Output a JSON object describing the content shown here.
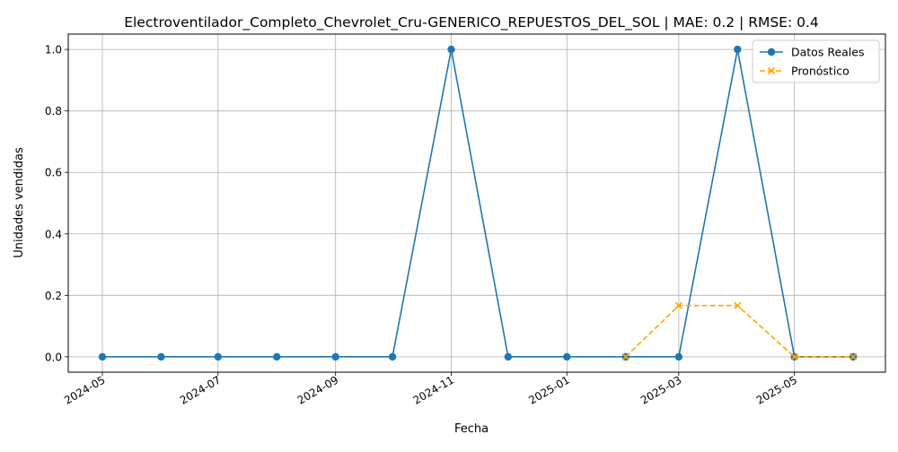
{
  "chart_data": {
    "type": "line",
    "title": "Electroventilador_Completo_Chevrolet_Cru-GENERICO_REPUESTOS_DEL_SOL | MAE: 0.2 | RMSE: 0.4",
    "xlabel": "Fecha",
    "ylabel": "Unidades vendidas",
    "xlim": [
      "2024-04-13",
      "2025-06-18"
    ],
    "ylim": [
      -0.05,
      1.05
    ],
    "x_ticks": [
      "2024-05",
      "2024-07",
      "2024-09",
      "2024-11",
      "2025-01",
      "2025-03",
      "2025-05"
    ],
    "y_ticks": [
      "0.0",
      "0.2",
      "0.4",
      "0.6",
      "0.8",
      "1.0"
    ],
    "grid": true,
    "legend_position": "top-right",
    "series": [
      {
        "name": "Datos Reales",
        "color": "#1f77b4",
        "style": "solid",
        "marker": "circle",
        "x": [
          "2024-05-01",
          "2024-06-01",
          "2024-07-01",
          "2024-08-01",
          "2024-09-01",
          "2024-10-01",
          "2024-11-01",
          "2024-12-01",
          "2025-01-01",
          "2025-02-01",
          "2025-03-01",
          "2025-04-01",
          "2025-05-01",
          "2025-06-01"
        ],
        "values": [
          0,
          0,
          0,
          0,
          0,
          0,
          1,
          0,
          0,
          0,
          0,
          1,
          0,
          0
        ]
      },
      {
        "name": "Pronóstico",
        "color": "#ffa500",
        "style": "dashed",
        "marker": "x",
        "x": [
          "2025-02-01",
          "2025-03-01",
          "2025-04-01",
          "2025-05-01",
          "2025-06-01"
        ],
        "values": [
          0,
          0.1667,
          0.1667,
          0,
          0
        ]
      }
    ]
  }
}
